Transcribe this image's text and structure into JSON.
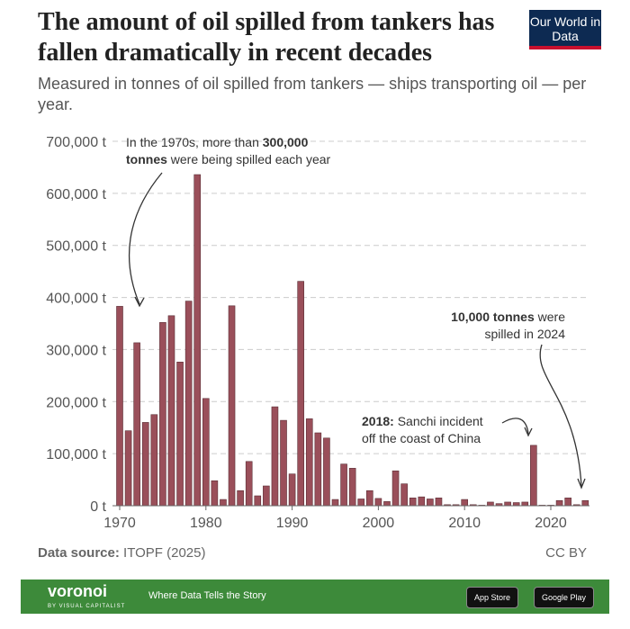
{
  "header": {
    "title": "The amount of oil spilled from tankers has fallen dramatically in recent decades",
    "subtitle": "Measured in tonnes of oil spilled from tankers — ships transporting oil — per year.",
    "logo": "Our World in Data"
  },
  "footer": {
    "source_label": "Data source:",
    "source": "ITOPF (2025)",
    "license": "CC BY",
    "brand": "voronoi",
    "brand_sub": "BY VISUAL CAPITALIST",
    "tagline": "Where Data Tells the Story",
    "app_store": "App Store",
    "google_play": "Google Play"
  },
  "chart_data": {
    "type": "bar",
    "ylim": [
      0,
      700000
    ],
    "yticks": [
      0,
      100000,
      200000,
      300000,
      400000,
      500000,
      600000,
      700000
    ],
    "ytick_labels": [
      "0 t",
      "100,000 t",
      "200,000 t",
      "300,000 t",
      "400,000 t",
      "500,000 t",
      "600,000 t",
      "700,000 t"
    ],
    "xticks": [
      1970,
      1980,
      1990,
      2000,
      2010,
      2020
    ],
    "grid": true,
    "color": "#9a4f5a",
    "x": [
      1970,
      1971,
      1972,
      1973,
      1974,
      1975,
      1976,
      1977,
      1978,
      1979,
      1980,
      1981,
      1982,
      1983,
      1984,
      1985,
      1986,
      1987,
      1988,
      1989,
      1990,
      1991,
      1992,
      1993,
      1994,
      1995,
      1996,
      1997,
      1998,
      1999,
      2000,
      2001,
      2002,
      2003,
      2004,
      2005,
      2006,
      2007,
      2008,
      2009,
      2010,
      2011,
      2012,
      2013,
      2014,
      2015,
      2016,
      2017,
      2018,
      2019,
      2020,
      2021,
      2022,
      2023,
      2024
    ],
    "values": [
      383000,
      144000,
      313000,
      160000,
      175000,
      352000,
      365000,
      276000,
      393000,
      636000,
      206000,
      48000,
      12000,
      384000,
      29000,
      85000,
      19000,
      38000,
      190000,
      164000,
      61000,
      431000,
      167000,
      140000,
      130000,
      12000,
      80000,
      72000,
      13000,
      29000,
      14000,
      8000,
      67000,
      42000,
      15000,
      17000,
      13000,
      15000,
      2000,
      2000,
      12000,
      2000,
      1000,
      7000,
      4000,
      7000,
      6000,
      7000,
      116000,
      1000,
      1000,
      10000,
      15000,
      2000,
      10000
    ],
    "annotations": [
      {
        "text_plain": "In the 1970s, more than ",
        "text_bold": "300,000",
        "text_line2_bold": "tonnes",
        "text_line2": " were being spilled each year"
      },
      {
        "text_bold": "2018:",
        "text_plain": " Sanchi incident",
        "text_line2": "off the coast of China"
      },
      {
        "text_bold": "10,000 tonnes",
        "text_plain": " were",
        "text_line2": "spilled in 2024"
      }
    ]
  }
}
